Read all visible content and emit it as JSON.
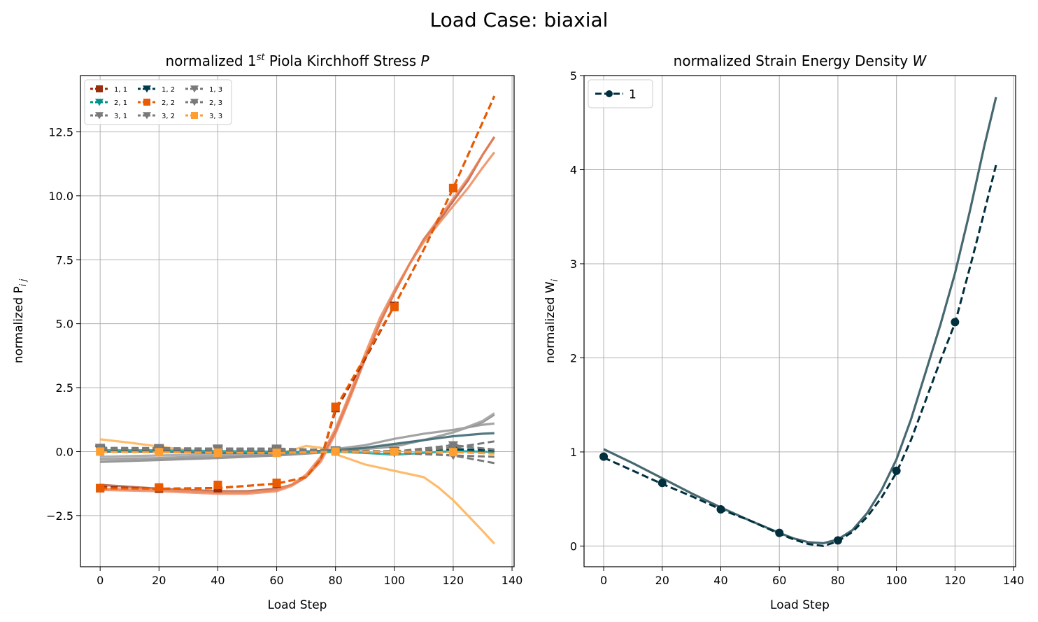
{
  "figure_title": "Load Case: biaxial",
  "chart_data": [
    {
      "type": "line",
      "title_parts": [
        "normalized 1",
        "st",
        " Piola Kirchhoff Stress ",
        "P"
      ],
      "xlabel": "Load Step",
      "ylabel_parts": [
        "normalized P",
        "i j"
      ],
      "xlim": [
        -6.7,
        140.7
      ],
      "ylim": [
        -4.5,
        14.7
      ],
      "xticks": [
        0,
        20,
        40,
        60,
        80,
        100,
        120,
        140
      ],
      "yticks": [
        -2.5,
        0.0,
        2.5,
        5.0,
        7.5,
        10.0,
        12.5
      ],
      "ytick_labels": [
        "−2.5",
        "0.0",
        "2.5",
        "5.0",
        "7.5",
        "10.0",
        "12.5"
      ],
      "grid": true,
      "legend": {
        "placement": "top-left",
        "columns": 3,
        "entries": [
          "1, 1",
          "2, 1",
          "3, 1",
          "1, 2",
          "2, 2",
          "3, 2",
          "1, 3",
          "2, 3",
          "3, 3"
        ]
      },
      "series": [
        {
          "name": "1, 1",
          "color": "#9a2d0a",
          "marker": "square",
          "x": [
            0,
            20,
            40,
            60,
            70,
            75,
            80,
            90,
            100,
            110,
            120,
            134
          ],
          "y": [
            -1.38,
            -1.45,
            -1.42,
            -1.25,
            -1.0,
            -0.3,
            1.6,
            3.6,
            5.7,
            7.9,
            10.3,
            13.9
          ],
          "markers_x": [
            0,
            20,
            40,
            60,
            80,
            100,
            120
          ],
          "markers_y": [
            -1.43,
            -1.45,
            -1.43,
            -1.25,
            1.7,
            5.7,
            10.3
          ]
        },
        {
          "name": "2, 1",
          "color": "#00918d",
          "marker": "triangle-down",
          "x": [
            0,
            20,
            40,
            60,
            80,
            100,
            120,
            134
          ],
          "y": [
            0.08,
            0.08,
            0.07,
            0.06,
            0.02,
            -0.05,
            0.03,
            0.0
          ],
          "markers_x": [
            0,
            20,
            40,
            60,
            80,
            100,
            120
          ],
          "markers_y": [
            0.08,
            0.08,
            0.07,
            0.06,
            0.02,
            -0.05,
            0.03
          ]
        },
        {
          "name": "3, 1",
          "color": "#7a7a7a",
          "marker": "triangle-down",
          "x": [
            0,
            20,
            40,
            60,
            80,
            100,
            120,
            134
          ],
          "y": [
            0.12,
            0.12,
            0.12,
            0.12,
            0.05,
            0.0,
            -0.15,
            -0.45
          ],
          "markers_x": [
            0,
            20,
            40,
            60,
            80,
            100,
            120
          ],
          "markers_y": [
            0.12,
            0.12,
            0.12,
            0.12,
            0.05,
            0.0,
            -0.15
          ]
        },
        {
          "name": "1, 2",
          "color": "#003c4e",
          "marker": "triangle-down",
          "x": [
            0,
            20,
            40,
            60,
            80,
            100,
            120,
            134
          ],
          "y": [
            0.05,
            0.05,
            0.05,
            0.04,
            0.0,
            0.02,
            0.1,
            0.05
          ],
          "markers_x": [
            0,
            20,
            40,
            60,
            80,
            100,
            120
          ],
          "markers_y": [
            0.05,
            0.05,
            0.05,
            0.04,
            0.0,
            0.02,
            0.1
          ]
        },
        {
          "name": "2, 2",
          "color": "#ea5a00",
          "marker": "square",
          "x": [
            0,
            20,
            40,
            60,
            70,
            75,
            80,
            90,
            100,
            110,
            120,
            134
          ],
          "y": [
            -1.43,
            -1.45,
            -1.43,
            -1.25,
            -1.0,
            -0.3,
            1.7,
            3.7,
            5.7,
            7.9,
            10.3,
            13.9
          ],
          "markers_x": [
            0,
            20,
            40,
            60,
            80,
            100,
            120
          ],
          "markers_y": [
            -1.43,
            -1.4,
            -1.3,
            -1.22,
            1.75,
            5.65,
            10.3
          ]
        },
        {
          "name": "3, 2",
          "color": "#7a7a7a",
          "marker": "triangle-down",
          "x": [
            0,
            20,
            40,
            60,
            80,
            100,
            120,
            134
          ],
          "y": [
            0.15,
            0.14,
            0.12,
            0.11,
            0.05,
            0.0,
            0.15,
            0.4
          ],
          "markers_x": [
            0,
            20,
            40,
            60,
            80,
            100,
            120
          ],
          "markers_y": [
            0.15,
            0.14,
            0.12,
            0.11,
            0.05,
            0.0,
            0.15
          ]
        },
        {
          "name": "1, 3",
          "color": "#7a7a7a",
          "marker": "triangle-down",
          "x": [
            0,
            20,
            40,
            60,
            80,
            100,
            120,
            134
          ],
          "y": [
            0.1,
            0.1,
            0.1,
            0.1,
            0.03,
            0.0,
            0.25,
            0.08
          ],
          "markers_x": [
            0,
            20,
            40,
            60,
            80,
            100,
            120
          ],
          "markers_y": [
            0.1,
            0.1,
            0.1,
            0.1,
            0.03,
            0.0,
            0.25
          ]
        },
        {
          "name": "2, 3",
          "color": "#7a7a7a",
          "marker": "triangle-down",
          "x": [
            0,
            20,
            40,
            60,
            80,
            100,
            120,
            134
          ],
          "y": [
            0.1,
            0.08,
            0.06,
            0.05,
            0.0,
            -0.05,
            -0.15,
            -0.2
          ],
          "markers_x": [
            0,
            20,
            40,
            60,
            80,
            100,
            120
          ],
          "markers_y": [
            0.1,
            0.08,
            0.06,
            0.05,
            0.0,
            -0.05,
            -0.15
          ]
        },
        {
          "name": "3, 3",
          "color": "#ff9f32",
          "marker": "square",
          "x": [
            0,
            20,
            40,
            60,
            80,
            100,
            120,
            134
          ],
          "y": [
            0.0,
            -0.02,
            -0.04,
            -0.05,
            0.0,
            0.0,
            -0.02,
            -0.08
          ],
          "markers_x": [
            0,
            20,
            40,
            60,
            80,
            100,
            120
          ],
          "markers_y": [
            0.0,
            -0.02,
            -0.04,
            -0.05,
            0.0,
            0.0,
            -0.02
          ]
        }
      ],
      "model_curves": [
        {
          "color": "#b5593e",
          "opacity": 0.85,
          "x": [
            0,
            20,
            40,
            50,
            60,
            65,
            70,
            75,
            80,
            85,
            90,
            95,
            100,
            105,
            110,
            115,
            120,
            125,
            130,
            134
          ],
          "y": [
            -1.3,
            -1.45,
            -1.55,
            -1.55,
            -1.45,
            -1.3,
            -1.0,
            -0.3,
            0.8,
            2.2,
            3.6,
            5.0,
            6.2,
            7.3,
            8.3,
            9.0,
            9.8,
            10.6,
            11.6,
            12.3
          ]
        },
        {
          "color": "#ec8a5a",
          "opacity": 0.85,
          "x": [
            0,
            20,
            40,
            50,
            60,
            65,
            70,
            75,
            80,
            85,
            90,
            95,
            100,
            105,
            110,
            115,
            120,
            125,
            130,
            134
          ],
          "y": [
            -1.45,
            -1.5,
            -1.6,
            -1.6,
            -1.5,
            -1.3,
            -0.9,
            -0.2,
            0.9,
            2.3,
            3.8,
            5.2,
            6.3,
            7.3,
            8.2,
            8.9,
            9.6,
            10.3,
            11.1,
            11.7
          ]
        },
        {
          "color": "#ee8055",
          "opacity": 0.75,
          "x": [
            0,
            20,
            40,
            50,
            60,
            65,
            70,
            75,
            80,
            85,
            90,
            95,
            100,
            105,
            110,
            115,
            120,
            125,
            130,
            134
          ],
          "y": [
            -1.5,
            -1.55,
            -1.65,
            -1.65,
            -1.55,
            -1.35,
            -1.0,
            -0.4,
            0.7,
            2.1,
            3.6,
            5.0,
            6.2,
            7.3,
            8.3,
            9.1,
            9.9,
            10.7,
            11.6,
            12.3
          ]
        },
        {
          "color": "#ffb45c",
          "opacity": 0.9,
          "x": [
            0,
            10,
            20,
            30,
            40,
            50,
            60,
            65,
            70,
            75,
            80,
            90,
            100,
            110,
            115,
            120,
            125,
            130,
            134
          ],
          "y": [
            0.48,
            0.35,
            0.2,
            0.05,
            -0.05,
            -0.1,
            -0.1,
            0.05,
            0.22,
            0.15,
            -0.1,
            -0.5,
            -0.75,
            -1.0,
            -1.4,
            -1.9,
            -2.5,
            -3.1,
            -3.6
          ]
        },
        {
          "color": "#999999",
          "opacity": 0.9,
          "x": [
            0,
            20,
            40,
            60,
            70,
            80,
            90,
            100,
            110,
            120,
            130,
            134
          ],
          "y": [
            -0.3,
            -0.25,
            -0.17,
            -0.1,
            -0.03,
            0.1,
            0.25,
            0.5,
            0.7,
            0.85,
            1.05,
            1.1
          ]
        },
        {
          "color": "#8c8c8c",
          "opacity": 0.9,
          "x": [
            0,
            20,
            40,
            60,
            70,
            80,
            90,
            100,
            110,
            120,
            130,
            134
          ],
          "y": [
            -0.4,
            -0.33,
            -0.25,
            -0.15,
            -0.08,
            0.0,
            0.1,
            0.2,
            0.45,
            0.75,
            1.15,
            1.45
          ]
        },
        {
          "color": "#a6a6a6",
          "opacity": 0.9,
          "x": [
            0,
            20,
            40,
            60,
            70,
            80,
            90,
            100,
            110,
            120,
            130,
            134
          ],
          "y": [
            -0.2,
            -0.15,
            -0.1,
            -0.05,
            0.0,
            0.05,
            0.12,
            0.25,
            0.45,
            0.75,
            1.2,
            1.5
          ]
        },
        {
          "color": "#3e6a73",
          "opacity": 0.9,
          "x": [
            0,
            20,
            40,
            60,
            70,
            80,
            90,
            100,
            110,
            120,
            130,
            134
          ],
          "y": [
            0.0,
            0.0,
            -0.05,
            -0.05,
            0.0,
            0.05,
            0.15,
            0.3,
            0.45,
            0.6,
            0.7,
            0.72
          ]
        },
        {
          "color": "#27a8a4",
          "opacity": 0.9,
          "x": [
            0,
            20,
            40,
            60,
            70,
            80,
            90,
            100,
            110,
            120,
            130,
            134
          ],
          "y": [
            0.05,
            0.05,
            0.02,
            0.0,
            -0.02,
            0.0,
            -0.05,
            -0.12,
            -0.05,
            0.02,
            0.0,
            -0.02
          ]
        }
      ]
    },
    {
      "type": "line",
      "title_parts": [
        "normalized Strain Energy Density ",
        "W"
      ],
      "xlabel": "Load Step",
      "ylabel_parts": [
        "normalized W",
        "i"
      ],
      "xlim": [
        -6.7,
        140.7
      ],
      "ylim": [
        -0.22,
        5.0
      ],
      "xticks": [
        0,
        20,
        40,
        60,
        80,
        100,
        120,
        140
      ],
      "yticks": [
        0,
        1,
        2,
        3,
        4,
        5
      ],
      "ytick_labels": [
        "0",
        "1",
        "2",
        "3",
        "4",
        "5"
      ],
      "grid": true,
      "legend": {
        "placement": "top-left",
        "columns": 1,
        "entries": [
          "1"
        ]
      },
      "series": [
        {
          "name": "1",
          "color": "#002f3d",
          "marker": "circle",
          "x": [
            0,
            10,
            20,
            30,
            40,
            50,
            60,
            65,
            70,
            75,
            80,
            85,
            90,
            95,
            100,
            105,
            110,
            115,
            120,
            125,
            130,
            134
          ],
          "y": [
            0.94,
            0.8,
            0.66,
            0.53,
            0.39,
            0.27,
            0.13,
            0.07,
            0.02,
            0.0,
            0.05,
            0.15,
            0.31,
            0.52,
            0.78,
            1.13,
            1.55,
            1.97,
            2.37,
            2.95,
            3.55,
            4.05
          ],
          "markers_x": [
            0,
            20,
            40,
            60,
            80,
            100,
            120
          ],
          "markers_y": [
            0.95,
            0.67,
            0.39,
            0.14,
            0.06,
            0.8,
            2.38
          ]
        }
      ],
      "model_curves": [
        {
          "color": "#466870",
          "opacity": 1.0,
          "x": [
            0,
            10,
            20,
            30,
            40,
            50,
            60,
            65,
            70,
            75,
            80,
            85,
            90,
            95,
            100,
            105,
            110,
            115,
            120,
            125,
            130,
            134
          ],
          "y": [
            1.03,
            0.88,
            0.72,
            0.56,
            0.41,
            0.27,
            0.14,
            0.08,
            0.04,
            0.03,
            0.07,
            0.17,
            0.35,
            0.6,
            0.92,
            1.35,
            1.85,
            2.35,
            2.9,
            3.55,
            4.25,
            4.77
          ]
        }
      ]
    }
  ]
}
